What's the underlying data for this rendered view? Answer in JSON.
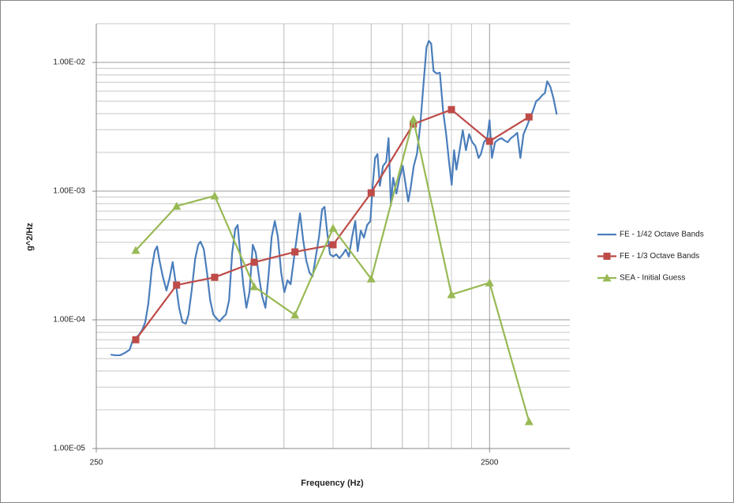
{
  "chart_data": {
    "type": "line",
    "x_label": "Frequency (Hz)",
    "y_label": "g^2/Hz",
    "xscale": "log",
    "yscale": "log",
    "xlim": [
      250,
      4000
    ],
    "ylim": [
      1e-05,
      0.02
    ],
    "xticks": [
      250,
      2500
    ],
    "yticks": [
      {
        "value": 1e-05,
        "label": "1.00E-05"
      },
      {
        "value": 0.0001,
        "label": "1.00E-04"
      },
      {
        "value": 0.001,
        "label": "1.00E-03"
      },
      {
        "value": 0.01,
        "label": "1.00E-02"
      }
    ],
    "grid": true,
    "minor_grid": true,
    "legend": "right",
    "series": [
      {
        "name": "FE - 1/42 Octave Bands",
        "color": "#4a7ebb",
        "marker": "none",
        "x": [
          272,
          279,
          287,
          295,
          304,
          309,
          315,
          321,
          327,
          333,
          339,
          346,
          352,
          357,
          362,
          369,
          377,
          384,
          391,
          399,
          406,
          414,
          422,
          429,
          437,
          446,
          454,
          460,
          469,
          478,
          487,
          496,
          505,
          514,
          524,
          534,
          544,
          554,
          564,
          572,
          580,
          591,
          602,
          613,
          625,
          636,
          648,
          660,
          673,
          685,
          698,
          711,
          724,
          738,
          752,
          766,
          780,
          794,
          809,
          824,
          840,
          855,
          871,
          887,
          904,
          921,
          938,
          951,
          964,
          982,
          1001,
          1019,
          1038,
          1058,
          1077,
          1097,
          1118,
          1139,
          1155,
          1176,
          1198,
          1221,
          1244,
          1261,
          1279,
          1297,
          1315,
          1340,
          1365,
          1384,
          1403,
          1422,
          1449,
          1476,
          1504,
          1525,
          1553,
          1575,
          1604,
          1634,
          1665,
          1696,
          1728,
          1752,
          1776,
          1801,
          1834,
          1869,
          1904,
          1939,
          1975,
          2003,
          2031,
          2059,
          2098,
          2137,
          2177,
          2218,
          2259,
          2301,
          2344,
          2376,
          2420,
          2466,
          2500,
          2535,
          2582,
          2630,
          2680,
          2730,
          2780,
          2833,
          2885,
          2940,
          2994,
          3050,
          3108,
          3166,
          3225,
          3285,
          3346,
          3409,
          3456,
          3504,
          3570,
          3637,
          3705
        ],
        "values": [
          5.37e-05,
          5.3e-05,
          5.3e-05,
          5.52e-05,
          5.85e-05,
          6.83e-05,
          7.23e-05,
          7.64e-05,
          8.32e-05,
          9.59e-05,
          0.000133,
          0.000251,
          0.000342,
          0.000372,
          0.000288,
          0.000217,
          0.000169,
          0.000211,
          0.000281,
          0.000184,
          0.000124,
          9.59e-05,
          9.31e-05,
          0.00011,
          0.000169,
          0.000297,
          0.000383,
          0.000405,
          0.000356,
          0.000233,
          0.000142,
          0.00011,
          0.000103,
          9.73e-05,
          0.000104,
          0.00011,
          0.000142,
          0.000332,
          0.000508,
          0.000545,
          0.000342,
          0.000189,
          0.000124,
          0.000164,
          0.000383,
          0.000332,
          0.000217,
          0.000153,
          0.000124,
          0.000217,
          0.000441,
          0.000585,
          0.000441,
          0.000233,
          0.000164,
          0.000203,
          0.000189,
          0.000288,
          0.000441,
          0.000673,
          0.000411,
          0.000288,
          0.000233,
          0.000217,
          0.00031,
          0.000441,
          0.000723,
          0.000754,
          0.000508,
          0.000323,
          0.00031,
          0.000323,
          0.000301,
          0.000323,
          0.000352,
          0.00031,
          0.000441,
          0.000585,
          0.000342,
          0.000493,
          0.000435,
          0.000545,
          0.000585,
          0.0011,
          0.00181,
          0.00194,
          0.0011,
          0.00157,
          0.00169,
          0.00258,
          0.000776,
          0.00127,
          0.000959,
          0.00127,
          0.00157,
          0.00119,
          0.000832,
          0.00106,
          0.00157,
          0.00194,
          0.00318,
          0.00645,
          0.0131,
          0.0147,
          0.014,
          0.00857,
          0.0082,
          0.00832,
          0.00423,
          0.00277,
          0.00162,
          0.00112,
          0.00208,
          0.00147,
          0.00208,
          0.00297,
          0.00208,
          0.00277,
          0.0024,
          0.00224,
          0.00181,
          0.00194,
          0.0024,
          0.00258,
          0.00356,
          0.00181,
          0.0024,
          0.00251,
          0.00258,
          0.00247,
          0.0024,
          0.00258,
          0.00269,
          0.00284,
          0.00181,
          0.00277,
          0.00318,
          0.00367,
          0.00423,
          0.005,
          0.00522,
          0.0056,
          0.00577,
          0.00713,
          0.00645,
          0.00522,
          0.00394
        ]
      },
      {
        "name": "FE - 1/3 Octave Bands",
        "color": "#be4b48",
        "marker": "square",
        "x": [
          315,
          400,
          500,
          630,
          800,
          1000,
          1250,
          1600,
          2000,
          2500,
          3150
        ],
        "values": [
          7e-05,
          0.000186,
          0.000214,
          0.00028,
          0.000337,
          0.000383,
          0.00097,
          0.00332,
          0.0043,
          0.00244,
          0.00377
        ]
      },
      {
        "name": "SEA - Initial Guess",
        "color": "#98b954",
        "marker": "triangle",
        "x": [
          315,
          400,
          500,
          630,
          800,
          1000,
          1250,
          1600,
          2000,
          2500,
          3150
        ],
        "values": [
          0.000347,
          0.000764,
          0.00092,
          0.000181,
          0.000109,
          0.000515,
          0.000208,
          0.00362,
          0.000157,
          0.000194,
          1.62e-05
        ]
      }
    ]
  }
}
